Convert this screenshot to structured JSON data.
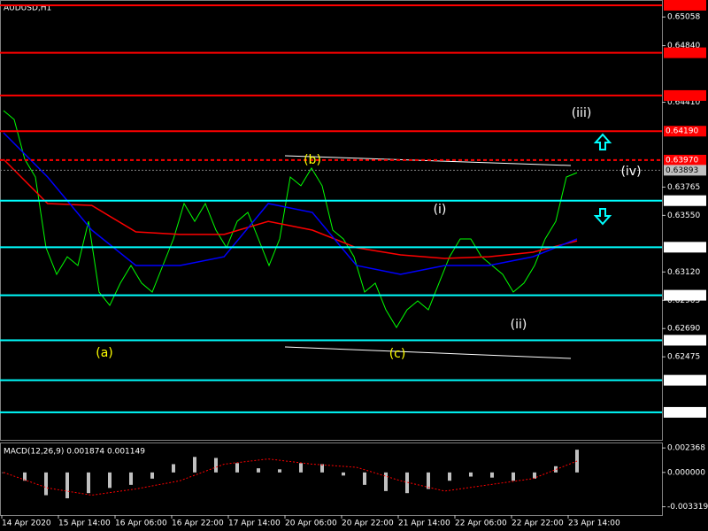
{
  "chart_data": [
    {
      "type": "line",
      "title": "AUDUSD,H1",
      "ylim": [
        0.61844,
        0.65187
      ],
      "yticks": [
        0.65058,
        {
          "value": 0.6484,
          "label": "0.64840"
        },
        {
          "value": 0.6441,
          "label": "0.64410"
        },
        0.63765,
        {
          "value": 0.6355,
          "label": "0.63550"
        },
        {
          "value": 0.6312,
          "label": "0.63120"
        },
        0.62905,
        {
          "value": 0.6269,
          "label": "0.62690"
        },
        0.62475
      ],
      "xtick_labels": [
        "14 Apr 2020",
        "15 Apr 14:00",
        "16 Apr 06:00",
        "16 Apr 22:00",
        "17 Apr 14:00",
        "20 Apr 06:00",
        "20 Apr 22:00",
        "21 Apr 14:00",
        "22 Apr 06:00",
        "22 Apr 22:00",
        "23 Apr 14:00"
      ],
      "series": [
        {
          "color": "#00ff00",
          "values": [
            0.64346,
            0.64279,
            0.63976,
            0.63842,
            0.63304,
            0.63102,
            0.63236,
            0.63169,
            0.63505,
            0.62967,
            0.62866,
            0.63035,
            0.63169,
            0.63035,
            0.62967,
            0.63169,
            0.63371,
            0.6364,
            0.63505,
            0.6364,
            0.63438,
            0.63304,
            0.63505,
            0.63573,
            0.63371,
            0.63169,
            0.63371,
            0.63842,
            0.63775,
            0.63909,
            0.63775,
            0.63438,
            0.63371,
            0.63236,
            0.62967,
            0.63035,
            0.62833,
            0.62698,
            0.62833,
            0.629,
            0.62833,
            0.63035,
            0.63236,
            0.63371,
            0.63371,
            0.63236,
            0.63169,
            0.63102,
            0.62967,
            0.63035,
            0.63169,
            0.63371,
            0.63505,
            0.63842,
            0.63875
          ]
        },
        {
          "color": "#ff0000",
          "values": [
            0.63976,
            0.6364,
            0.63626,
            0.63425,
            0.63405,
            0.63405,
            0.63505,
            0.63438,
            0.63304,
            0.6325,
            0.63223,
            0.63236,
            0.6327,
            0.63357
          ]
        },
        {
          "color": "#0000ff",
          "values": [
            0.64178,
            0.63842,
            0.63438,
            0.63169,
            0.63169,
            0.63236,
            0.6364,
            0.63573,
            0.63169,
            0.63102,
            0.63169,
            0.63169,
            0.63236,
            0.63371
          ]
        }
      ],
      "levels": [
        {
          "value": 0.65147,
          "color": "#ff0000"
        },
        {
          "value": 0.64786,
          "color": "#ff0000"
        },
        {
          "value": 0.64461,
          "color": "#ff0000"
        },
        {
          "value": 0.6419,
          "label": "0.64190",
          "color": "#ff0000"
        },
        {
          "value": 0.6397,
          "label": "0.63970",
          "color": "#ff0000",
          "style": "dashed"
        },
        {
          "value": 0.63662,
          "color": "#00ffff"
        },
        {
          "value": 0.63308,
          "color": "#00ffff"
        },
        {
          "value": 0.62943,
          "color": "#00ffff"
        },
        {
          "value": 0.62601,
          "color": "#00ffff"
        },
        {
          "value": 0.62297,
          "color": "#00ffff"
        },
        {
          "value": 0.62053,
          "color": "#00ffff"
        }
      ],
      "last_price": 0.63893,
      "annotations": [
        "(a)",
        "(b)",
        "(c)",
        "(i)",
        "(ii)",
        "(iii)",
        "(iv)"
      ]
    },
    {
      "type": "bar",
      "title": "MACD(12,26,9) 0.001874 0.001149",
      "ylim": [
        -0.004122,
        0.002894
      ],
      "yticks": [
        0.002368,
        {
          "value": 0,
          "label": "0.000000"
        },
        -0.003319
      ],
      "series": [
        {
          "color": "#c0c0c0",
          "values": [
            0,
            -0.0008,
            -0.0022,
            -0.0025,
            -0.002,
            -0.0015,
            -0.0012,
            -0.0006,
            0.0008,
            0.0015,
            0.0014,
            0.0009,
            0.0004,
            0.0003,
            0.0009,
            0.0008,
            -0.0003,
            -0.0012,
            -0.0018,
            -0.002,
            -0.0016,
            -0.0008,
            -0.0004,
            -0.0005,
            -0.0008,
            -0.0006,
            0.0006,
            0.0022
          ]
        },
        {
          "type": "line",
          "color": "#ff0000",
          "values": [
            0,
            -0.0015,
            -0.0022,
            -0.0016,
            -0.0008,
            0.0008,
            0.0013,
            0.0008,
            0.0005,
            -0.0008,
            -0.0018,
            -0.0012,
            -0.0006,
            0.0011
          ]
        }
      ]
    }
  ]
}
